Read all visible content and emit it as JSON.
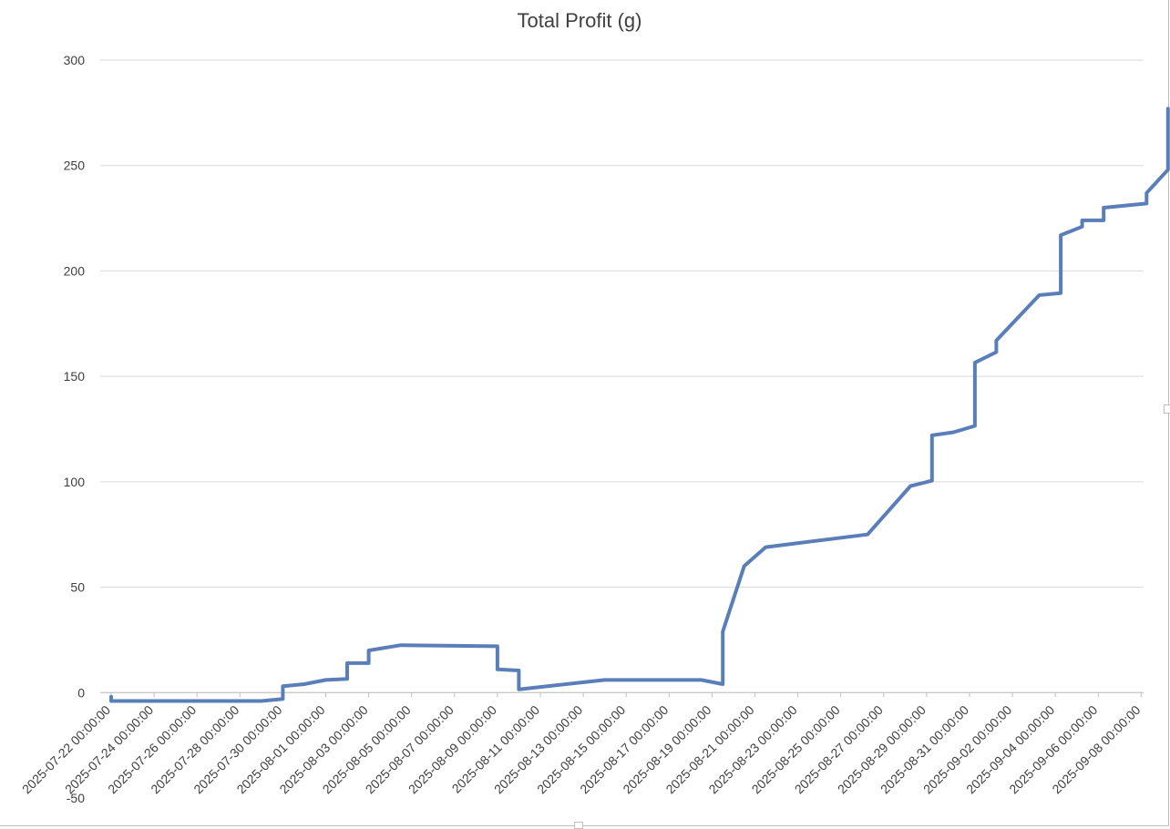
{
  "chart_data": {
    "type": "line",
    "title": "Total Profit (g)",
    "xlabel": "",
    "ylabel": "",
    "ylim": [
      -50,
      300
    ],
    "yticks": [
      -50,
      0,
      50,
      100,
      150,
      200,
      250,
      300
    ],
    "ytick_labels": [
      "-50",
      "0",
      "50",
      "100",
      "150",
      "200",
      "250",
      "300"
    ],
    "xlim": [
      "2025-07-22 00:00:00",
      "2025-09-09 12:00:00"
    ],
    "xtick_labels": [
      "2025-07-22 00:00:00",
      "2025-07-24 00:00:00",
      "2025-07-26 00:00:00",
      "2025-07-28 00:00:00",
      "2025-07-30 00:00:00",
      "2025-08-01 00:00:00",
      "2025-08-03 00:00:00",
      "2025-08-05 00:00:00",
      "2025-08-07 00:00:00",
      "2025-08-09 00:00:00",
      "2025-08-11 00:00:00",
      "2025-08-13 00:00:00",
      "2025-08-15 00:00:00",
      "2025-08-17 00:00:00",
      "2025-08-19 00:00:00",
      "2025-08-21 00:00:00",
      "2025-08-23 00:00:00",
      "2025-08-25 00:00:00",
      "2025-08-27 00:00:00",
      "2025-08-29 00:00:00",
      "2025-08-31 00:00:00",
      "2025-09-02 00:00:00",
      "2025-09-04 00:00:00",
      "2025-09-06 00:00:00",
      "2025-09-08 00:00:00"
    ],
    "grid": true,
    "legend": "none",
    "line_color": "#5a7fb8",
    "series": [
      {
        "x": [
          "2025-07-22 00:00:00",
          "2025-07-22 00:00:00",
          "2025-07-23 00:00:00",
          "2025-07-29 00:00:00",
          "2025-07-30 00:00:00",
          "2025-07-30 00:00:00",
          "2025-07-31 00:00:00",
          "2025-08-01 00:00:00",
          "2025-08-02 00:00:00",
          "2025-08-02 00:00:00",
          "2025-08-03 00:00:00",
          "2025-08-03 00:00:00",
          "2025-08-04 12:00:00",
          "2025-08-09 00:00:00",
          "2025-08-09 00:00:00",
          "2025-08-10 00:00:00",
          "2025-08-10 00:00:00",
          "2025-08-13 12:00:00",
          "2025-08-14 00:00:00",
          "2025-08-18 12:00:00",
          "2025-08-19 12:00:00",
          "2025-08-19 12:00:00",
          "2025-08-20 12:00:00",
          "2025-08-21 12:00:00",
          "2025-08-26 06:00:00",
          "2025-08-28 06:00:00",
          "2025-08-29 06:00:00",
          "2025-08-29 06:00:00",
          "2025-08-30 06:00:00",
          "2025-08-31 06:00:00",
          "2025-08-31 06:00:00",
          "2025-09-01 06:00:00",
          "2025-09-01 06:00:00",
          "2025-09-03 06:00:00",
          "2025-09-04 06:00:00",
          "2025-09-04 06:00:00",
          "2025-09-05 06:00:00",
          "2025-09-05 06:00:00",
          "2025-09-06 06:00:00",
          "2025-09-06 06:00:00",
          "2025-09-08 06:00:00",
          "2025-09-08 06:00:00",
          "2025-09-09 06:00:00",
          "2025-09-09 06:00:00"
        ],
        "values": [
          -2,
          -4,
          -4,
          -4,
          -3,
          3,
          4,
          6,
          6.5,
          14,
          14,
          20,
          22.5,
          22,
          11,
          10.5,
          1.5,
          5.5,
          6,
          6,
          4,
          29,
          60,
          69,
          75,
          98,
          100.5,
          122,
          123.5,
          126.5,
          156.5,
          161.5,
          167,
          188.5,
          189.5,
          217,
          221,
          224,
          224,
          230,
          232,
          237,
          248,
          277
        ]
      }
    ]
  }
}
